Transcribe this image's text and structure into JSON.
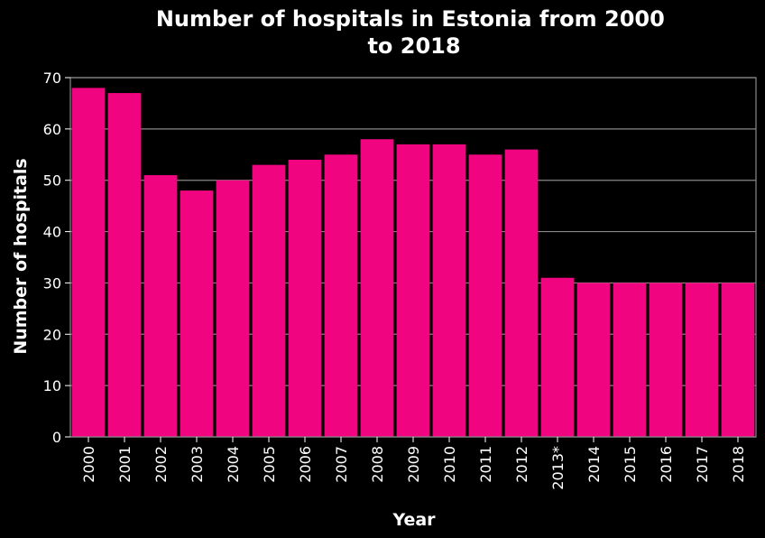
{
  "chart_data": {
    "type": "bar",
    "title_lines": [
      "Number of hospitals in Estonia from 2000",
      "to 2018"
    ],
    "xlabel": "Year",
    "ylabel": "Number of hospitals",
    "categories": [
      "2000",
      "2001",
      "2002",
      "2003",
      "2004",
      "2005",
      "2006",
      "2007",
      "2008",
      "2009",
      "2010",
      "2011",
      "2012",
      "2013*",
      "2014",
      "2015",
      "2016",
      "2017",
      "2018"
    ],
    "values": [
      68,
      67,
      51,
      48,
      50,
      53,
      54,
      55,
      58,
      57,
      57,
      55,
      56,
      31,
      30,
      30,
      30,
      30,
      30
    ],
    "ylim": [
      0,
      70
    ],
    "yticks": [
      "0",
      "10",
      "20",
      "30",
      "40",
      "50",
      "60",
      "70"
    ],
    "grid": true,
    "legend": "none",
    "bar_color": "#f0047f",
    "background_color": "#000000"
  }
}
